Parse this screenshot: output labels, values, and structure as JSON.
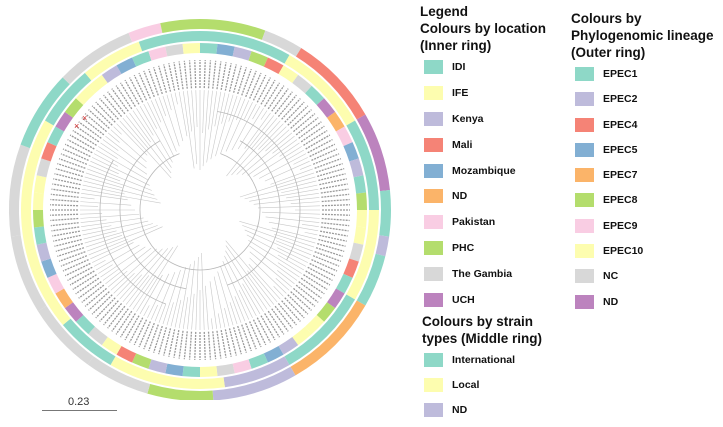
{
  "legend": {
    "title": "Legend",
    "location": {
      "heading": "Colours by location (Inner ring)",
      "items": [
        {
          "label": "IDI",
          "color": "#8ed8c7"
        },
        {
          "label": "IFE",
          "color": "#fdfdaf"
        },
        {
          "label": "Kenya",
          "color": "#bebbdb"
        },
        {
          "label": "Mali",
          "color": "#f58376"
        },
        {
          "label": "Mozambique",
          "color": "#82afd3"
        },
        {
          "label": "ND",
          "color": "#fbb469"
        },
        {
          "label": "Pakistan",
          "color": "#f9cde3"
        },
        {
          "label": "PHC",
          "color": "#b4dd6d"
        },
        {
          "label": "The Gambia",
          "color": "#d8d8d8"
        },
        {
          "label": "UCH",
          "color": "#bc83be"
        }
      ]
    },
    "strain": {
      "heading": "Colours by strain types (Middle ring)",
      "items": [
        {
          "label": "International",
          "color": "#8ed8c7"
        },
        {
          "label": "Local",
          "color": "#fdfdaf"
        },
        {
          "label": "ND",
          "color": "#bebbdb"
        }
      ]
    },
    "lineage": {
      "heading": "Colours by Phylogenomic lineage (Outer ring)",
      "items": [
        {
          "label": "EPEC1",
          "color": "#8ed8c7"
        },
        {
          "label": "EPEC2",
          "color": "#bebbdb"
        },
        {
          "label": "EPEC4",
          "color": "#f58376"
        },
        {
          "label": "EPEC5",
          "color": "#82afd3"
        },
        {
          "label": "EPEC7",
          "color": "#fbb469"
        },
        {
          "label": "EPEC8",
          "color": "#b4dd6d"
        },
        {
          "label": "EPEC9",
          "color": "#f9cde3"
        },
        {
          "label": "EPEC10",
          "color": "#fdfdaf"
        },
        {
          "label": "NC",
          "color": "#d8d8d8"
        },
        {
          "label": "ND",
          "color": "#bc83be"
        }
      ]
    }
  },
  "scale": {
    "label": "0.23"
  }
}
